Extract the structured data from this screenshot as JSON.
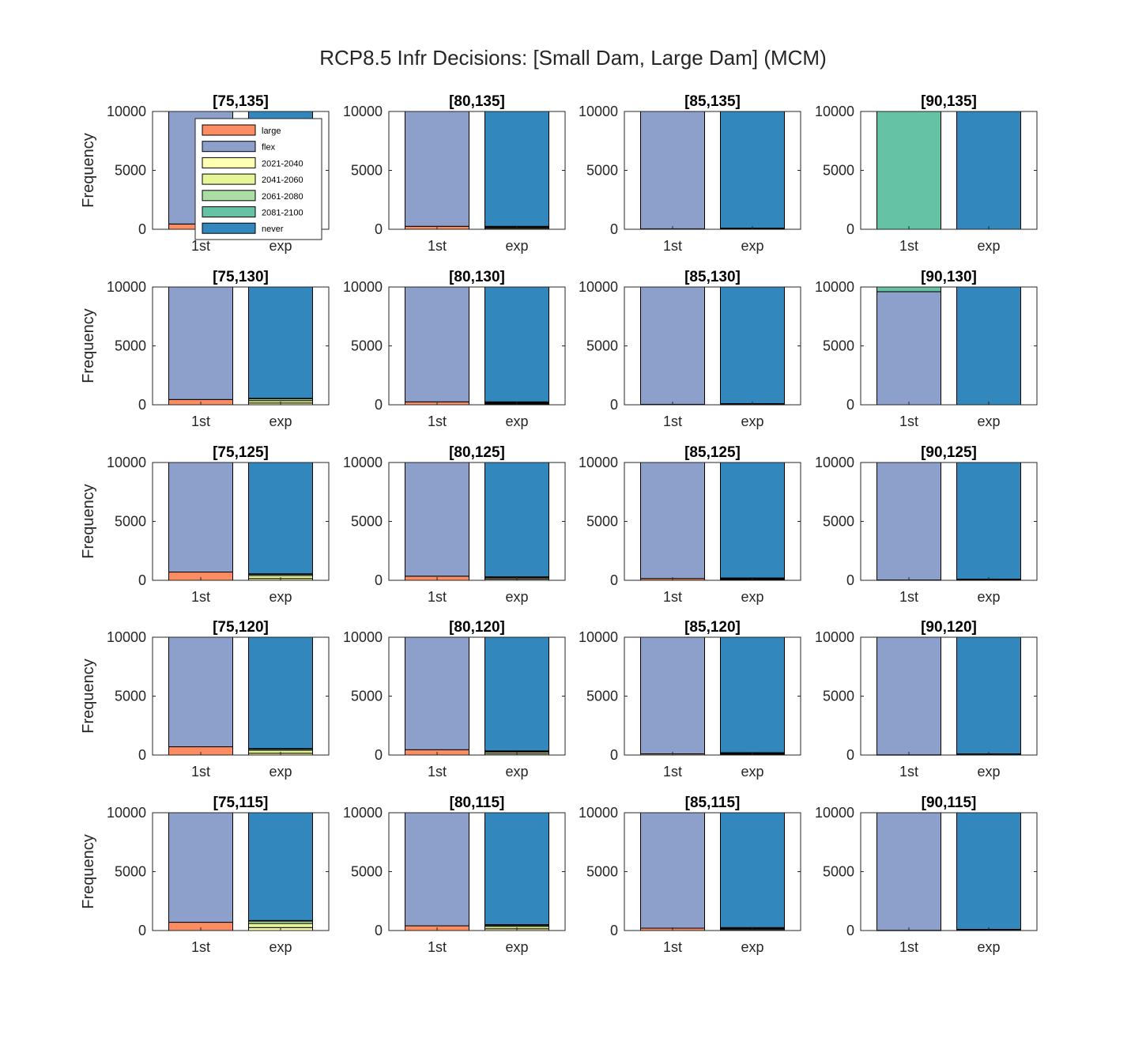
{
  "figure": {
    "title": "RCP8.5 Infr Decisions: [Small Dam, Large Dam] (MCM)"
  },
  "colors": {
    "large": "#fc8d62",
    "flex": "#8da0cb",
    "2021-2040": "#ffffb3",
    "2041-2060": "#e6f598",
    "2061-2080": "#abdda4",
    "2081-2100": "#66c2a5",
    "never": "#3288bd"
  },
  "chart_data": {
    "type": "bar",
    "stacked": true,
    "categories": [
      "1st",
      "exp"
    ],
    "ylabel": "Frequency",
    "ylim": [
      0,
      10000
    ],
    "yticks": [
      0,
      5000,
      10000
    ],
    "grid": false,
    "legend": {
      "location": "first panel, over the bars",
      "entries": [
        "large",
        "flex",
        "2021-2040",
        "2041-2060",
        "2061-2080",
        "2081-2100",
        "never"
      ]
    },
    "panels": [
      {
        "title": "[75,135]",
        "first": {
          "large": 450,
          "flex": 9550
        },
        "exp": {
          "2021-2040": 0,
          "2041-2060": 0,
          "2061-2080": 0,
          "2081-2100": 0,
          "never": 10000
        }
      },
      {
        "title": "[80,135]",
        "first": {
          "large": 250,
          "flex": 9750
        },
        "exp": {
          "2021-2040": 80,
          "2041-2060": 80,
          "2061-2080": 60,
          "2081-2100": 30,
          "never": 9750
        }
      },
      {
        "title": "[85,135]",
        "first": {
          "large": 40,
          "flex": 9960
        },
        "exp": {
          "2021-2040": 30,
          "2041-2060": 30,
          "2061-2080": 20,
          "2081-2100": 20,
          "never": 9900
        }
      },
      {
        "title": "[90,135]",
        "first": {
          "large": 0,
          "flex": 0,
          "2081-2100": 10000
        },
        "exp": {
          "never": 10000
        }
      },
      {
        "title": "[75,130]",
        "first": {
          "large": 450,
          "flex": 9550
        },
        "exp": {
          "2021-2040": 150,
          "2041-2060": 200,
          "2061-2080": 150,
          "2081-2100": 50,
          "never": 9450
        }
      },
      {
        "title": "[80,130]",
        "first": {
          "large": 250,
          "flex": 9750
        },
        "exp": {
          "2021-2040": 70,
          "2041-2060": 70,
          "2061-2080": 60,
          "2081-2100": 50,
          "never": 9750
        }
      },
      {
        "title": "[85,130]",
        "first": {
          "large": 40,
          "flex": 9960
        },
        "exp": {
          "2021-2040": 30,
          "2041-2060": 30,
          "2061-2080": 20,
          "2081-2100": 20,
          "never": 9900
        }
      },
      {
        "title": "[90,130]",
        "first": {
          "large": 0,
          "flex": 9600,
          "2081-2100": 400
        },
        "exp": {
          "never": 10000
        }
      },
      {
        "title": "[75,125]",
        "first": {
          "large": 700,
          "flex": 9300
        },
        "exp": {
          "2021-2040": 150,
          "2041-2060": 250,
          "2061-2080": 100,
          "2081-2100": 50,
          "never": 9450
        }
      },
      {
        "title": "[80,125]",
        "first": {
          "large": 350,
          "flex": 9650
        },
        "exp": {
          "2021-2040": 100,
          "2041-2060": 100,
          "2061-2080": 60,
          "2081-2100": 40,
          "never": 9700
        }
      },
      {
        "title": "[85,125]",
        "first": {
          "large": 150,
          "flex": 9850
        },
        "exp": {
          "2021-2040": 50,
          "2041-2060": 60,
          "2061-2080": 40,
          "2081-2100": 50,
          "never": 9800
        }
      },
      {
        "title": "[90,125]",
        "first": {
          "large": 30,
          "flex": 9970
        },
        "exp": {
          "2021-2040": 30,
          "2041-2060": 30,
          "2061-2080": 20,
          "2081-2100": 20,
          "never": 9900
        }
      },
      {
        "title": "[75,120]",
        "first": {
          "large": 700,
          "flex": 9300
        },
        "exp": {
          "2021-2040": 150,
          "2041-2060": 250,
          "2061-2080": 100,
          "2081-2100": 50,
          "never": 9450
        }
      },
      {
        "title": "[80,120]",
        "first": {
          "large": 450,
          "flex": 9550
        },
        "exp": {
          "2021-2040": 100,
          "2041-2060": 150,
          "2061-2080": 50,
          "2081-2100": 50,
          "never": 9650
        }
      },
      {
        "title": "[85,120]",
        "first": {
          "large": 100,
          "flex": 9900
        },
        "exp": {
          "2021-2040": 60,
          "2041-2060": 60,
          "2061-2080": 40,
          "2081-2100": 40,
          "never": 9800
        }
      },
      {
        "title": "[90,120]",
        "first": {
          "large": 20,
          "flex": 9980
        },
        "exp": {
          "2021-2040": 30,
          "2041-2060": 30,
          "2061-2080": 20,
          "2081-2100": 20,
          "never": 9900
        }
      },
      {
        "title": "[75,115]",
        "first": {
          "large": 700,
          "flex": 9300
        },
        "exp": {
          "2021-2040": 250,
          "2041-2060": 350,
          "2061-2080": 200,
          "2081-2100": 50,
          "never": 9150
        }
      },
      {
        "title": "[80,115]",
        "first": {
          "large": 400,
          "flex": 9600
        },
        "exp": {
          "2021-2040": 150,
          "2041-2060": 200,
          "2061-2080": 100,
          "2081-2100": 50,
          "never": 9500
        }
      },
      {
        "title": "[85,115]",
        "first": {
          "large": 200,
          "flex": 9800
        },
        "exp": {
          "2021-2040": 80,
          "2041-2060": 80,
          "2061-2080": 60,
          "2081-2100": 30,
          "never": 9750
        }
      },
      {
        "title": "[90,115]",
        "first": {
          "large": 20,
          "flex": 9980
        },
        "exp": {
          "2021-2040": 30,
          "2041-2060": 30,
          "2061-2080": 20,
          "2081-2100": 20,
          "never": 9900
        }
      }
    ]
  }
}
